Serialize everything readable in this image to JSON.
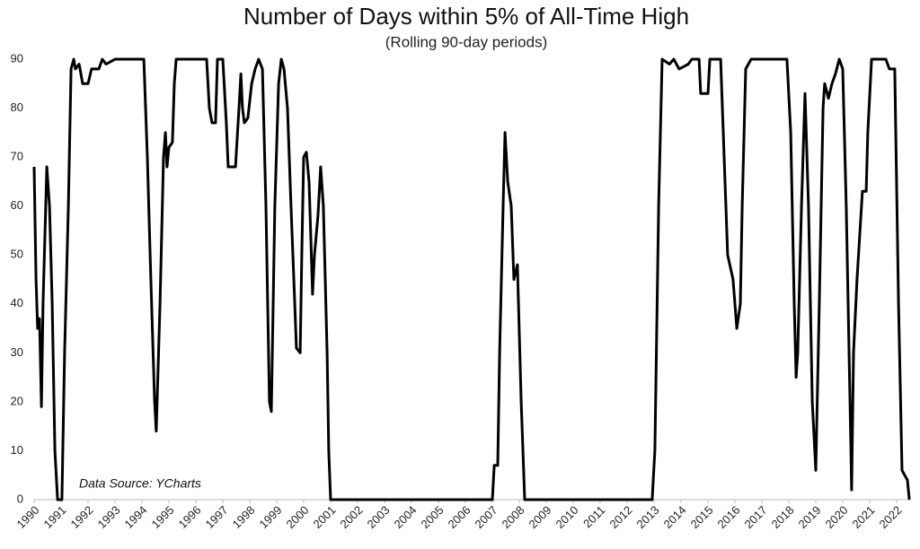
{
  "chart_data": {
    "type": "line",
    "title": "Number of Days within 5% of All-Time High",
    "subtitle": "(Rolling 90-day periods)",
    "annotation": "Data Source: YCharts",
    "color": "#000000",
    "xlim": [
      1990,
      2022.5
    ],
    "xticks": [
      1990,
      1991,
      1992,
      1993,
      1994,
      1995,
      1996,
      1997,
      1998,
      1999,
      2000,
      2001,
      2002,
      2003,
      2004,
      2005,
      2006,
      2007,
      2008,
      2009,
      2010,
      2011,
      2012,
      2013,
      2014,
      2015,
      2016,
      2017,
      2018,
      2019,
      2020,
      2021,
      2022
    ],
    "ylim": [
      0,
      90
    ],
    "yticks": [
      0,
      10,
      20,
      30,
      40,
      50,
      60,
      70,
      80,
      90
    ],
    "grid": false,
    "x": [
      1990.0,
      1990.07,
      1990.13,
      1990.2,
      1990.27,
      1990.33,
      1990.47,
      1990.57,
      1990.67,
      1990.77,
      1990.87,
      1991.03,
      1991.13,
      1991.27,
      1991.37,
      1991.47,
      1991.53,
      1991.67,
      1991.8,
      1992.0,
      1992.13,
      1992.4,
      1992.53,
      1992.67,
      1993.0,
      1993.4,
      1994.07,
      1994.2,
      1994.33,
      1994.47,
      1994.53,
      1994.67,
      1994.8,
      1994.87,
      1994.93,
      1995.0,
      1995.13,
      1995.2,
      1995.27,
      1996.4,
      1996.5,
      1996.6,
      1996.73,
      1996.8,
      1997.0,
      1997.13,
      1997.2,
      1997.47,
      1997.6,
      1997.67,
      1997.73,
      1997.8,
      1997.93,
      1998.07,
      1998.2,
      1998.33,
      1998.47,
      1998.6,
      1998.73,
      1998.8,
      1998.93,
      1999.07,
      1999.17,
      1999.27,
      1999.4,
      1999.53,
      1999.67,
      1999.73,
      1999.87,
      1999.93,
      2000.0,
      2000.1,
      2000.2,
      2000.33,
      2000.4,
      2000.53,
      2000.63,
      2000.73,
      2000.87,
      2000.93,
      2001.0,
      2007.0,
      2007.07,
      2007.2,
      2007.27,
      2007.4,
      2007.47,
      2007.57,
      2007.7,
      2007.8,
      2007.93,
      2008.07,
      2008.2,
      2012.93,
      2013.03,
      2013.17,
      2013.3,
      2013.57,
      2013.73,
      2013.93,
      2014.27,
      2014.4,
      2014.67,
      2014.73,
      2015.0,
      2015.07,
      2015.47,
      2015.6,
      2015.73,
      2015.93,
      2016.07,
      2016.2,
      2016.27,
      2016.4,
      2016.6,
      2017.93,
      2018.07,
      2018.2,
      2018.27,
      2018.33,
      2018.47,
      2018.6,
      2018.73,
      2018.87,
      2019.0,
      2019.13,
      2019.27,
      2019.33,
      2019.47,
      2019.6,
      2019.73,
      2019.87,
      2020.0,
      2020.13,
      2020.27,
      2020.33,
      2020.4,
      2020.53,
      2020.73,
      2020.87,
      2020.93,
      2021.07,
      2021.6,
      2021.73,
      2021.93,
      2022.07,
      2022.2,
      2022.4,
      2022.47
    ],
    "values": [
      68,
      45,
      35,
      37,
      19,
      40,
      68,
      60,
      40,
      10,
      0,
      0,
      30,
      60,
      88,
      90,
      88,
      89,
      85,
      85,
      88,
      88,
      90,
      89,
      90,
      90,
      90,
      70,
      45,
      20,
      14,
      40,
      70,
      75,
      68,
      72,
      73,
      85,
      90,
      90,
      80,
      77,
      77,
      90,
      90,
      77,
      68,
      68,
      80,
      87,
      80,
      77,
      78,
      85,
      88,
      90,
      88,
      60,
      20,
      18,
      60,
      85,
      90,
      88,
      80,
      60,
      40,
      31,
      30,
      50,
      70,
      71,
      65,
      42,
      50,
      58,
      68,
      60,
      30,
      10,
      0,
      0,
      7,
      7,
      30,
      60,
      75,
      65,
      60,
      45,
      48,
      20,
      0,
      0,
      10,
      60,
      90,
      89,
      90,
      88,
      89,
      90,
      90,
      83,
      83,
      90,
      90,
      70,
      50,
      45,
      35,
      40,
      60,
      88,
      90,
      90,
      75,
      40,
      25,
      30,
      60,
      83,
      60,
      20,
      6,
      40,
      80,
      85,
      82,
      85,
      87,
      90,
      88,
      60,
      20,
      2,
      30,
      45,
      63,
      63,
      75,
      90,
      90,
      88,
      88,
      40,
      6,
      4,
      0
    ]
  }
}
